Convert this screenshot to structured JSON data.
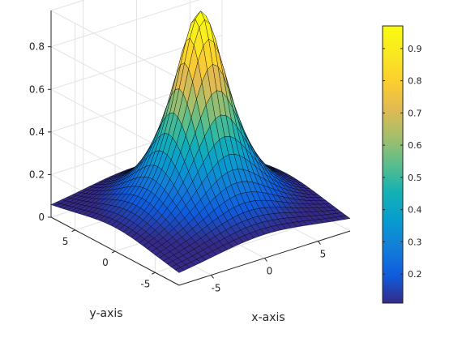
{
  "chart_data": {
    "type": "surface",
    "xlabel": "x-axis",
    "ylabel": "y-axis",
    "x_range": [
      -8,
      8
    ],
    "y_range": [
      -8,
      8
    ],
    "z_range": [
      0,
      0.97
    ],
    "x_ticks": [
      -5,
      0,
      5
    ],
    "y_ticks": [
      -5,
      0,
      5
    ],
    "z_ticks": [
      0,
      0.2,
      0.4,
      0.6,
      0.8
    ],
    "colorbar_range": [
      0.11,
      0.97
    ],
    "colorbar_ticks": [
      0.2,
      0.3,
      0.4,
      0.5,
      0.6,
      0.7,
      0.8,
      0.9
    ],
    "grid": true,
    "colormap": "parula",
    "contour_ring_radius": 4.6,
    "surface_function": "z = 1 / (1 + (x^2 + y^2) / 8)",
    "mesh_lines": "black",
    "contour_color": "#3333ee"
  }
}
